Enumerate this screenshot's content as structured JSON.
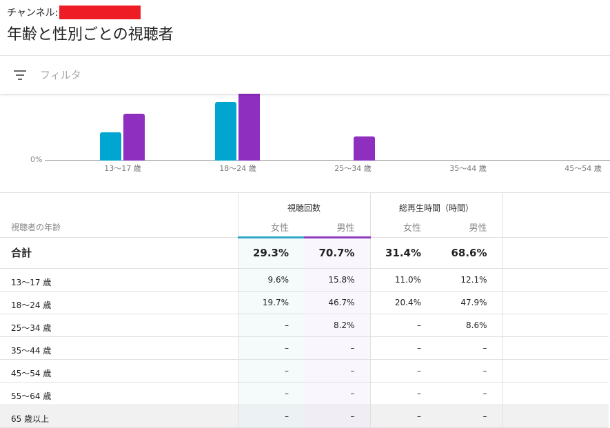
{
  "header": {
    "channel_label": "チャンネル:",
    "title": "年齢と性別ごとの視聴者"
  },
  "filter": {
    "placeholder": "フィルタ",
    "icon": "filter-icon"
  },
  "colors": {
    "female": "#00a6d0",
    "male": "#8e2fbf"
  },
  "chart_data": {
    "type": "bar",
    "categories": [
      "13～17 歳",
      "18～24 歳",
      "25～34 歳",
      "35～44 歳",
      "45～54 歳"
    ],
    "series": [
      {
        "name": "女性",
        "values": [
          9.6,
          19.7,
          0,
          0,
          0
        ]
      },
      {
        "name": "男性",
        "values": [
          15.8,
          46.7,
          8.2,
          0,
          0
        ]
      }
    ],
    "y_tick": "0%"
  },
  "table": {
    "col_age": "視聴者の年齢",
    "group_views": "視聴回数",
    "group_watch": "総再生時間（時間）",
    "female": "女性",
    "male": "男性",
    "total": {
      "label": "合計",
      "values": [
        "29.3%",
        "70.7%",
        "31.4%",
        "68.6%"
      ]
    },
    "rows": [
      {
        "label": "13～17 歳",
        "values": [
          "9.6%",
          "15.8%",
          "11.0%",
          "12.1%"
        ]
      },
      {
        "label": "18～24 歳",
        "values": [
          "19.7%",
          "46.7%",
          "20.4%",
          "47.9%"
        ]
      },
      {
        "label": "25～34 歳",
        "values": [
          "–",
          "8.2%",
          "–",
          "8.6%"
        ]
      },
      {
        "label": "35～44 歳",
        "values": [
          "–",
          "–",
          "–",
          "–"
        ]
      },
      {
        "label": "45～54 歳",
        "values": [
          "–",
          "–",
          "–",
          "–"
        ]
      },
      {
        "label": "55～64 歳",
        "values": [
          "–",
          "–",
          "–",
          "–"
        ]
      },
      {
        "label": "65 歳以上",
        "values": [
          "–",
          "–",
          "–",
          "–"
        ]
      }
    ]
  }
}
